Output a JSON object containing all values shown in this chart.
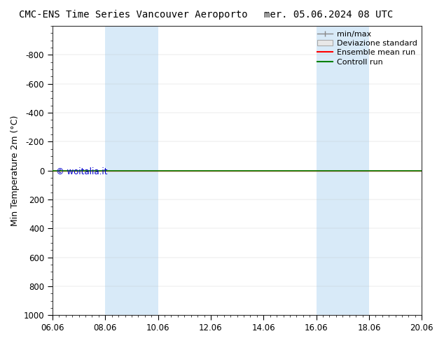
{
  "title_left": "CMC-ENS Time Series Vancouver Aeroporto",
  "title_right": "mer. 05.06.2024 08 UTC",
  "ylabel": "Min Temperature 2m (°C)",
  "ylim_bottom": 1000,
  "ylim_top": -1000,
  "yticks": [
    -800,
    -600,
    -400,
    -200,
    0,
    200,
    400,
    600,
    800,
    1000
  ],
  "xtick_labels": [
    "06.06",
    "08.06",
    "10.06",
    "12.06",
    "14.06",
    "16.06",
    "18.06",
    "20.06"
  ],
  "xtick_positions": [
    0,
    2,
    4,
    6,
    8,
    10,
    12,
    14
  ],
  "xlim": [
    0,
    14
  ],
  "green_line_y": 0,
  "blue_bands": [
    {
      "x_start": 2.0,
      "x_end": 4.0
    },
    {
      "x_start": 10.0,
      "x_end": 12.0
    }
  ],
  "blue_band_color": "#d8eaf8",
  "green_line_color": "#008000",
  "red_line_color": "#ff0000",
  "minmax_line_color": "#888888",
  "watermark": "© woitalia.it",
  "watermark_color": "#0000cc",
  "background_color": "#ffffff",
  "legend_labels": [
    "min/max",
    "Deviazione standard",
    "Ensemble mean run",
    "Controll run"
  ],
  "title_fontsize": 10,
  "axis_label_fontsize": 9,
  "tick_fontsize": 8.5,
  "legend_fontsize": 8
}
